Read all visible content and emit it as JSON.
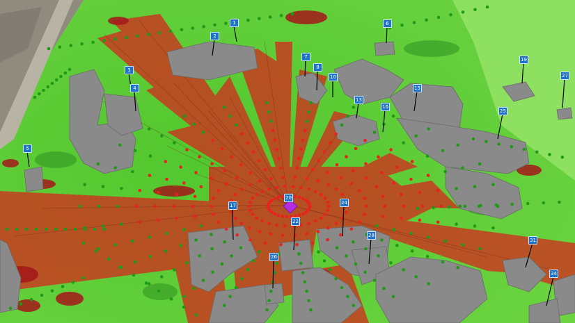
{
  "colors": {
    "visible": "#d9221c",
    "not_visible": "#4cc42a",
    "observer": "#b32ee0",
    "building": "#8a8a8a",
    "label_bg": "#1e73c8"
  },
  "observer": {
    "label": "20",
    "icon": "diamond-icon"
  },
  "labels": [
    {
      "text": "1"
    },
    {
      "text": "2"
    },
    {
      "text": "3"
    },
    {
      "text": "4"
    },
    {
      "text": "5"
    },
    {
      "text": "6"
    },
    {
      "text": "7"
    },
    {
      "text": "8"
    },
    {
      "text": "10"
    },
    {
      "text": "13"
    },
    {
      "text": "15"
    },
    {
      "text": "16"
    },
    {
      "text": "17"
    },
    {
      "text": "19"
    },
    {
      "text": "22"
    },
    {
      "text": "24"
    },
    {
      "text": "25"
    },
    {
      "text": "26"
    },
    {
      "text": "27"
    },
    {
      "text": "28"
    },
    {
      "text": "31"
    },
    {
      "text": "34"
    }
  ]
}
